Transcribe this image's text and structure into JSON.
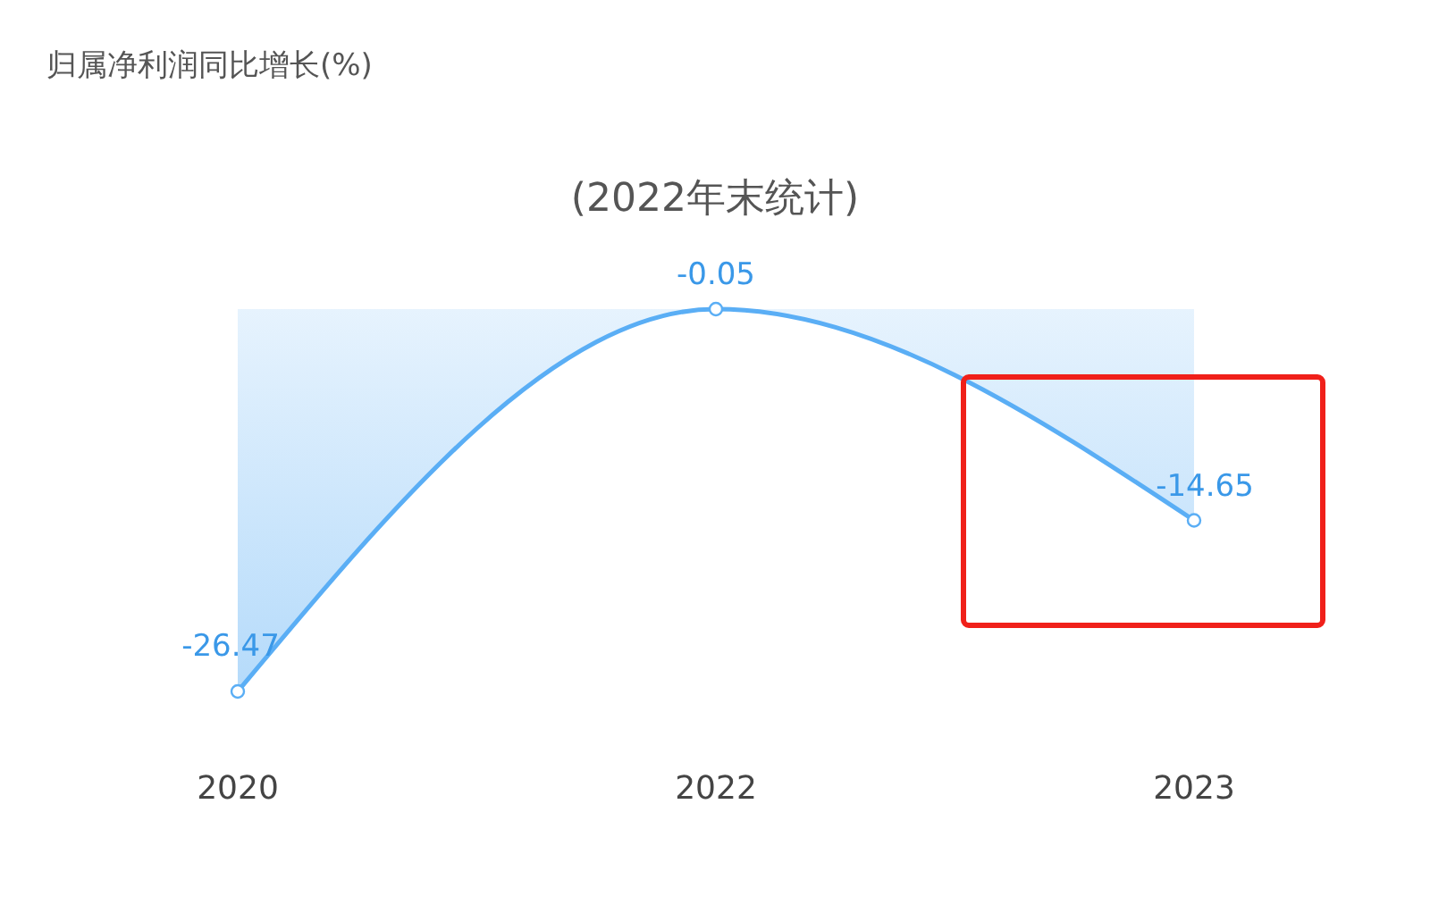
{
  "chart_data": {
    "type": "area",
    "title": "归属净利润同比增长(%)",
    "subtitle": "(2022年末统计)",
    "categories": [
      "2020",
      "2022",
      "2023"
    ],
    "series": [
      {
        "color": "#5aaef5",
        "values": [
          -26.47,
          -0.05,
          -14.65
        ]
      }
    ],
    "data_labels": true,
    "marker": "circle",
    "tick_labels": "x"
  }
}
